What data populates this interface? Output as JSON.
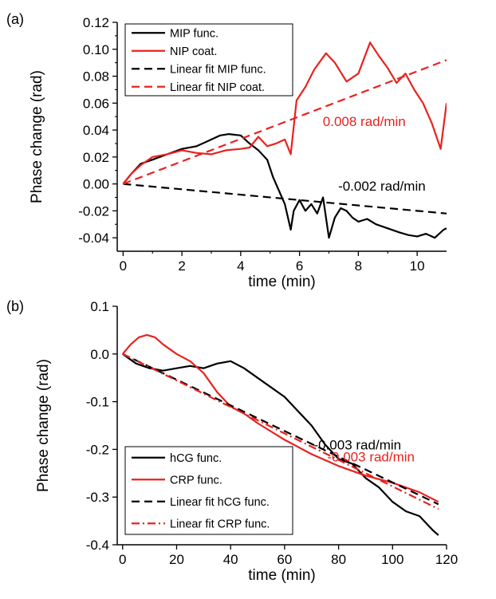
{
  "chart_data": [
    {
      "panel_label": "(a)",
      "type": "line",
      "xlabel": "time (min)",
      "ylabel": "Phase change (rad)",
      "xlim": [
        -0.2,
        11.0
      ],
      "ylim": [
        -0.05,
        0.12
      ],
      "xticks": [
        0,
        2,
        4,
        6,
        8,
        10
      ],
      "yticks": [
        -0.04,
        -0.02,
        0.0,
        0.02,
        0.04,
        0.06,
        0.08,
        0.1,
        0.12
      ],
      "ytick_labels": [
        "-0.04",
        "-0.02",
        "0.00",
        "0.02",
        "0.04",
        "0.06",
        "0.08",
        "0.10",
        "0.12"
      ],
      "legend_position": "top-left",
      "series": [
        {
          "name": "MIP func.",
          "color": "#000000",
          "style": "solid",
          "x": [
            0,
            0.3,
            0.6,
            1.0,
            1.5,
            2.0,
            2.5,
            3.0,
            3.3,
            3.6,
            4.0,
            4.3,
            4.6,
            4.9,
            5.1,
            5.3,
            5.5,
            5.7,
            5.8,
            6.0,
            6.2,
            6.4,
            6.6,
            6.8,
            7.0,
            7.2,
            7.4,
            7.6,
            7.8,
            8.0,
            8.3,
            8.6,
            9.0,
            9.4,
            9.7,
            10.0,
            10.3,
            10.6,
            10.9,
            11.0
          ],
          "y": [
            0.0,
            0.008,
            0.015,
            0.018,
            0.022,
            0.026,
            0.028,
            0.033,
            0.036,
            0.037,
            0.036,
            0.03,
            0.025,
            0.018,
            0.005,
            -0.005,
            -0.015,
            -0.034,
            -0.02,
            -0.012,
            -0.02,
            -0.015,
            -0.022,
            -0.01,
            -0.04,
            -0.025,
            -0.018,
            -0.02,
            -0.025,
            -0.028,
            -0.026,
            -0.03,
            -0.033,
            -0.036,
            -0.038,
            -0.039,
            -0.037,
            -0.04,
            -0.034,
            -0.033
          ]
        },
        {
          "name": "NIP coat.",
          "color": "#e8221e",
          "style": "solid",
          "x": [
            0,
            0.3,
            0.6,
            1.0,
            1.5,
            2.0,
            2.5,
            3.0,
            3.5,
            4.0,
            4.3,
            4.6,
            4.9,
            5.2,
            5.5,
            5.7,
            5.9,
            6.2,
            6.5,
            6.9,
            7.2,
            7.6,
            8.0,
            8.4,
            8.7,
            9.0,
            9.3,
            9.6,
            9.9,
            10.2,
            10.5,
            10.8,
            11.0
          ],
          "y": [
            0.0,
            0.008,
            0.014,
            0.02,
            0.022,
            0.025,
            0.023,
            0.022,
            0.025,
            0.026,
            0.027,
            0.035,
            0.028,
            0.03,
            0.033,
            0.022,
            0.062,
            0.072,
            0.085,
            0.097,
            0.09,
            0.076,
            0.082,
            0.105,
            0.095,
            0.086,
            0.075,
            0.082,
            0.07,
            0.06,
            0.045,
            0.026,
            0.06
          ]
        },
        {
          "name": "Linear fit MIP func.",
          "color": "#000000",
          "style": "dashed",
          "x": [
            0,
            11.0
          ],
          "y": [
            0.0,
            -0.022
          ]
        },
        {
          "name": "Linear fit NIP coat.",
          "color": "#e8221e",
          "style": "dashed",
          "x": [
            0,
            11.0
          ],
          "y": [
            0.0,
            0.092
          ]
        }
      ],
      "annotations": [
        {
          "text": "0.008 rad/min",
          "color": "#e8221e",
          "x": 8.2,
          "y": 0.043
        },
        {
          "text": "-0.002 rad/min",
          "color": "#000000",
          "x": 8.8,
          "y": -0.005
        }
      ]
    },
    {
      "panel_label": "(b)",
      "type": "line",
      "xlabel": "time (min)",
      "ylabel": "Phase change (rad)",
      "xlim": [
        -2,
        120
      ],
      "ylim": [
        -0.4,
        0.1
      ],
      "xticks": [
        0,
        20,
        40,
        60,
        80,
        100,
        120
      ],
      "yticks": [
        -0.4,
        -0.3,
        -0.2,
        -0.1,
        0.0,
        0.1
      ],
      "ytick_labels": [
        "-0.4",
        "-0.3",
        "-0.2",
        "-0.1",
        "0.0",
        "0.1"
      ],
      "legend_position": "bottom-left",
      "series": [
        {
          "name": "hCG func.",
          "color": "#000000",
          "style": "solid",
          "x": [
            0,
            5,
            10,
            15,
            20,
            25,
            30,
            35,
            40,
            45,
            50,
            55,
            60,
            65,
            70,
            75,
            80,
            85,
            90,
            95,
            100,
            105,
            110,
            115,
            117
          ],
          "y": [
            0.0,
            -0.02,
            -0.03,
            -0.035,
            -0.03,
            -0.025,
            -0.03,
            -0.02,
            -0.015,
            -0.03,
            -0.05,
            -0.07,
            -0.09,
            -0.12,
            -0.15,
            -0.19,
            -0.22,
            -0.23,
            -0.26,
            -0.28,
            -0.31,
            -0.33,
            -0.34,
            -0.37,
            -0.38
          ]
        },
        {
          "name": "CRP func.",
          "color": "#e8221e",
          "style": "solid",
          "x": [
            0,
            3,
            6,
            9,
            12,
            15,
            20,
            25,
            30,
            35,
            40,
            45,
            50,
            60,
            70,
            80,
            90,
            100,
            110,
            117
          ],
          "y": [
            0.0,
            0.02,
            0.035,
            0.04,
            0.035,
            0.02,
            0.0,
            -0.015,
            -0.04,
            -0.08,
            -0.11,
            -0.125,
            -0.145,
            -0.18,
            -0.21,
            -0.235,
            -0.255,
            -0.27,
            -0.29,
            -0.31
          ]
        },
        {
          "name": "Linear fit hCG func.",
          "color": "#000000",
          "style": "dashed",
          "x": [
            0,
            117
          ],
          "y": [
            0.0,
            -0.315
          ]
        },
        {
          "name": "Linear fit CRP func.",
          "color": "#e8221e",
          "style": "dashdot",
          "x": [
            0,
            117
          ],
          "y": [
            0.0,
            -0.325
          ]
        }
      ],
      "annotations": [
        {
          "text": "-0.003 rad/min",
          "color": "#000000",
          "x": 87,
          "y": -0.2
        },
        {
          "text": "-0.003 rad/min",
          "color": "#e8221e",
          "x": 92,
          "y": -0.225
        }
      ]
    }
  ]
}
